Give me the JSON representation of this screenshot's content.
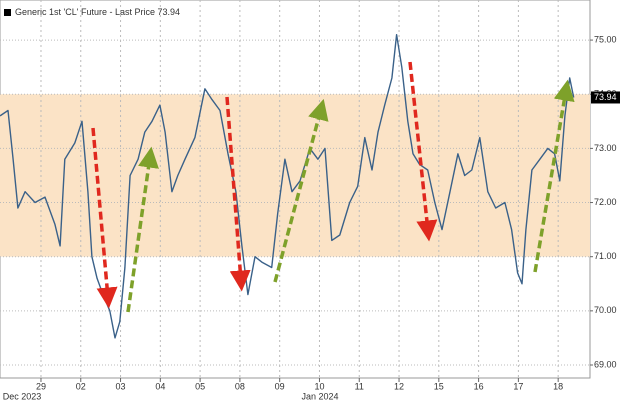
{
  "chart_data": {
    "type": "line",
    "series": [
      {
        "name": "Generic 1st 'CL' Future - Last Price",
        "color": "#3a6189",
        "values": [
          73.6,
          73.7,
          72.8,
          71.9,
          72.2,
          72.0,
          72.1,
          71.6,
          71.2,
          72.8,
          73.1,
          73.5,
          72.2,
          71.0,
          70.6,
          70.3,
          70.0,
          69.5,
          69.8,
          70.8,
          72.5,
          72.8,
          73.3,
          73.5,
          73.8,
          73.3,
          72.2,
          72.5,
          72.8,
          73.2,
          74.1,
          73.9,
          73.7,
          72.9,
          72.2,
          71.2,
          70.3,
          71.0,
          70.9,
          70.8,
          71.8,
          72.8,
          72.2,
          72.4,
          73.0,
          72.8,
          73.0,
          71.3,
          71.4,
          72.0,
          72.3,
          73.2,
          72.6,
          73.3,
          73.8,
          74.3,
          75.1,
          74.5,
          73.5,
          72.9,
          72.7,
          72.6,
          72.0,
          71.5,
          72.2,
          72.9,
          72.5,
          72.6,
          73.2,
          72.2,
          71.9,
          72.0,
          71.5,
          70.7,
          70.5,
          71.5,
          72.6,
          72.8,
          73.0,
          72.9,
          72.4,
          73.6,
          74.3,
          73.94
        ]
      }
    ],
    "x": [
      -1.03,
      -0.83,
      -0.7,
      -0.58,
      -0.4,
      -0.15,
      0.1,
      0.35,
      0.48,
      0.6,
      0.85,
      1.03,
      1.18,
      1.28,
      1.41,
      1.56,
      1.73,
      1.86,
      1.98,
      2.11,
      2.24,
      2.44,
      2.61,
      2.79,
      2.99,
      3.12,
      3.29,
      3.44,
      3.62,
      3.87,
      4.12,
      4.3,
      4.5,
      4.7,
      4.9,
      5.05,
      5.2,
      5.38,
      5.55,
      5.8,
      5.95,
      6.13,
      6.31,
      6.51,
      6.76,
      6.96,
      7.14,
      7.31,
      7.51,
      7.76,
      7.96,
      8.14,
      8.32,
      8.47,
      8.64,
      8.82,
      8.94,
      9.07,
      9.22,
      9.35,
      9.52,
      9.72,
      9.9,
      10.08,
      10.28,
      10.48,
      10.65,
      10.83,
      11.03,
      11.23,
      11.43,
      11.66,
      11.83,
      11.98,
      12.09,
      12.19,
      12.34,
      12.54,
      12.74,
      12.91,
      13.04,
      13.17,
      13.29,
      13.39
    ],
    "last_price": 73.94,
    "band": [
      71,
      74
    ],
    "band_color": "#fbe3c6",
    "xlim": [
      -1.03,
      13.8
    ],
    "xticks": [
      {
        "value": 0,
        "label": "29"
      },
      {
        "value": 1,
        "label": "02"
      },
      {
        "value": 2,
        "label": "03"
      },
      {
        "value": 3,
        "label": "04"
      },
      {
        "value": 4,
        "label": "05"
      },
      {
        "value": 5,
        "label": "08"
      },
      {
        "value": 6,
        "label": "09"
      },
      {
        "value": 7,
        "label": "10"
      },
      {
        "value": 8,
        "label": "11"
      },
      {
        "value": 9,
        "label": "12"
      },
      {
        "value": 10,
        "label": "15"
      },
      {
        "value": 11,
        "label": "16"
      },
      {
        "value": 12,
        "label": "17"
      },
      {
        "value": 13,
        "label": "18"
      }
    ],
    "period_labels": [
      "Dec 2023",
      "Jan 2024"
    ],
    "ylim": [
      68.76,
      75.74
    ],
    "yticks": [
      {
        "value": 69,
        "label": "69.00"
      },
      {
        "value": 70,
        "label": "70.00"
      },
      {
        "value": 71,
        "label": "71.00"
      },
      {
        "value": 72,
        "label": "72.00"
      },
      {
        "value": 73,
        "label": "73.00"
      },
      {
        "value": 74,
        "label": "74.00"
      },
      {
        "value": 75,
        "label": "75.00"
      }
    ],
    "grid": true
  }
}
